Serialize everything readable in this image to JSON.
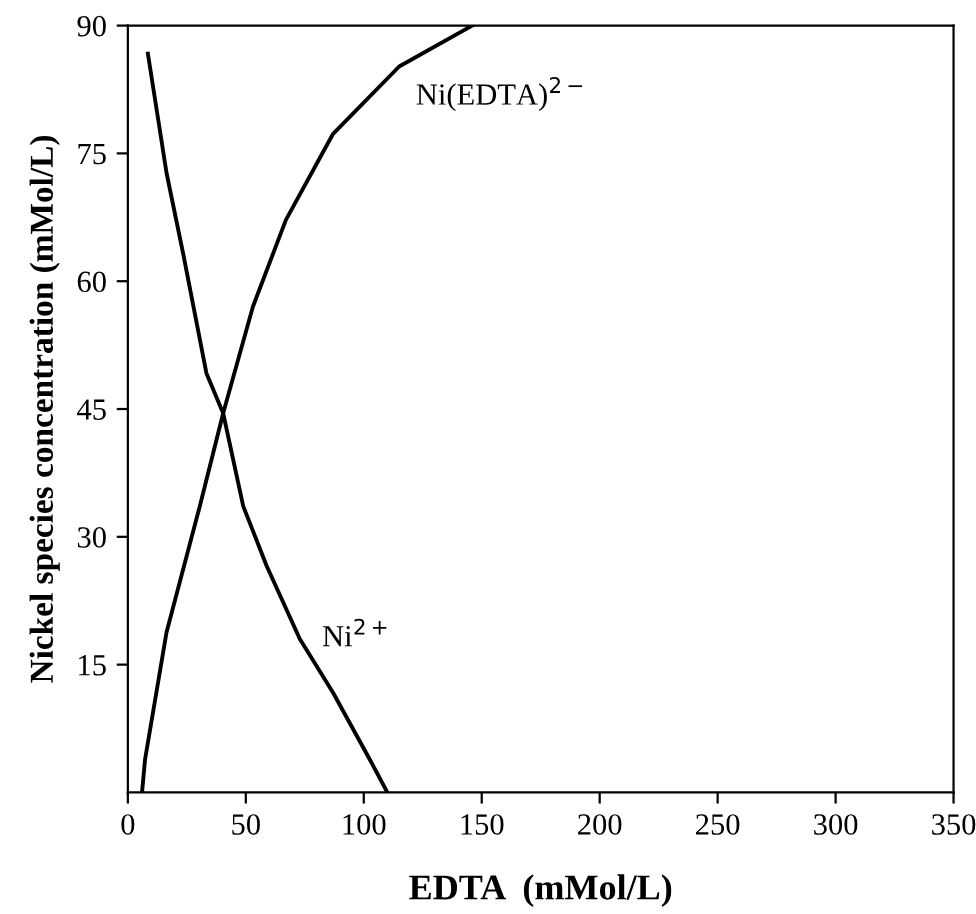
{
  "chart_data": {
    "type": "line",
    "xlabel": "EDTA  (mMol/L)",
    "ylabel": "Nickel species concentration (mMol/L)",
    "xlim": [
      0,
      350
    ],
    "xticks": [
      0,
      50,
      100,
      150,
      200,
      250,
      300,
      350
    ],
    "ylim": [
      0,
      90
    ],
    "yticks": [
      15,
      30,
      45,
      60,
      75,
      90
    ],
    "grid": false,
    "legend": false,
    "marker": "none",
    "line_style": "solid",
    "series": [
      {
        "name": "Ni$^{2+}$",
        "color": "#000000",
        "x": [
          8.5,
          16.4,
          23.4,
          33.3,
          40.4,
          48.9,
          58.8,
          72.9,
          87,
          102.5,
          110
        ],
        "values": [
          86.7,
          72.7,
          63.3,
          49.2,
          44.5,
          33.6,
          26.6,
          18,
          11.7,
          3.9,
          0
        ]
      },
      {
        "name": "Ni(EDTA)$^{2−}$",
        "color": "#000000",
        "x": [
          6,
          7.3,
          16.4,
          30.5,
          40.4,
          53,
          67,
          87,
          115,
          146
        ],
        "values": [
          0,
          3.9,
          18.8,
          33.6,
          44.5,
          57,
          67.2,
          77.3,
          85.2,
          90
        ]
      }
    ]
  }
}
